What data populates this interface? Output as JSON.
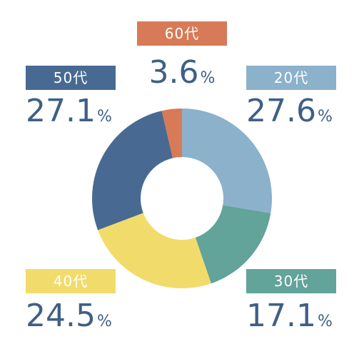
{
  "chart_data": {
    "type": "pie",
    "donut": true,
    "categories": [
      "20代",
      "30代",
      "40代",
      "50代",
      "60代"
    ],
    "values": [
      27.6,
      17.1,
      24.5,
      27.1,
      3.6
    ],
    "value_labels": [
      "27.6",
      "17.1",
      "24.5",
      "27.1",
      "3.6"
    ],
    "unit": "%",
    "colors": [
      "#8bb1cb",
      "#62a39a",
      "#f1dc6b",
      "#486a92",
      "#d77a57"
    ]
  }
}
